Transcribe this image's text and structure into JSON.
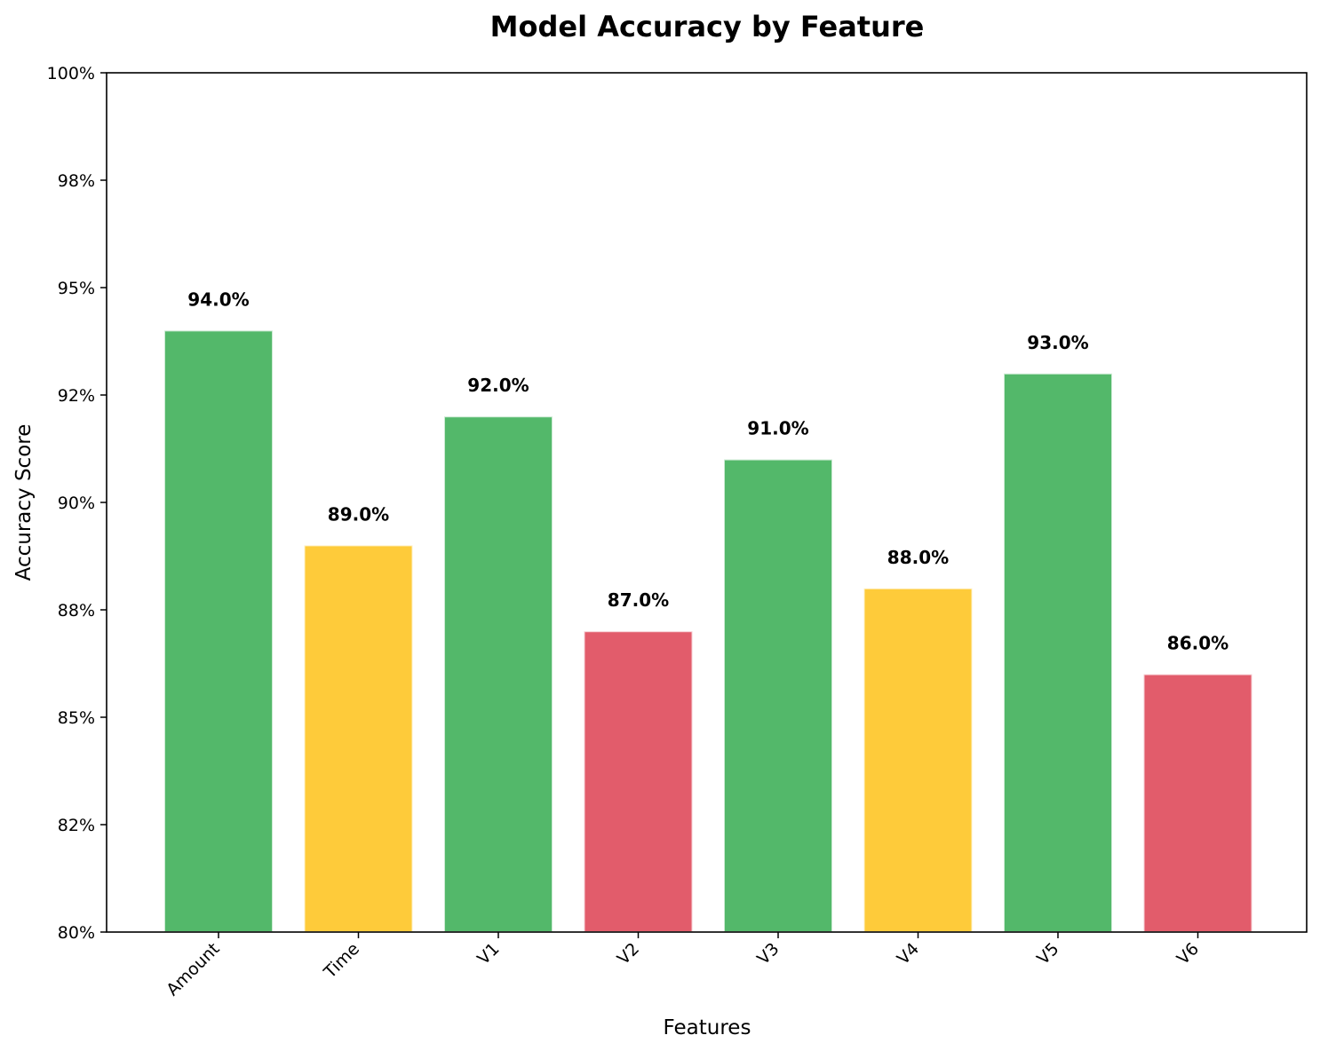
{
  "chart_data": {
    "type": "bar",
    "title": "Model Accuracy by Feature",
    "xlabel": "Features",
    "ylabel": "Accuracy Score",
    "categories": [
      "Amount",
      "Time",
      "V1",
      "V2",
      "V3",
      "V4",
      "V5",
      "V6"
    ],
    "values": [
      0.94,
      0.89,
      0.92,
      0.87,
      0.91,
      0.88,
      0.93,
      0.86
    ],
    "data_labels": [
      "94.0%",
      "89.0%",
      "92.0%",
      "87.0%",
      "91.0%",
      "88.0%",
      "93.0%",
      "86.0%"
    ],
    "bar_colors": [
      "#53b86a",
      "#fecb3a",
      "#53b86a",
      "#e25c6b",
      "#53b86a",
      "#fecb3a",
      "#53b86a",
      "#e25c6b"
    ],
    "ylim": [
      0.8,
      1.0
    ],
    "yticks": [
      0.8,
      0.825,
      0.85,
      0.875,
      0.9,
      0.925,
      0.95,
      0.975,
      1.0
    ],
    "ytick_labels": [
      "80%",
      "82%",
      "85%",
      "88%",
      "90%",
      "92%",
      "95%",
      "98%",
      "100%"
    ],
    "grid": false,
    "legend": "none"
  }
}
